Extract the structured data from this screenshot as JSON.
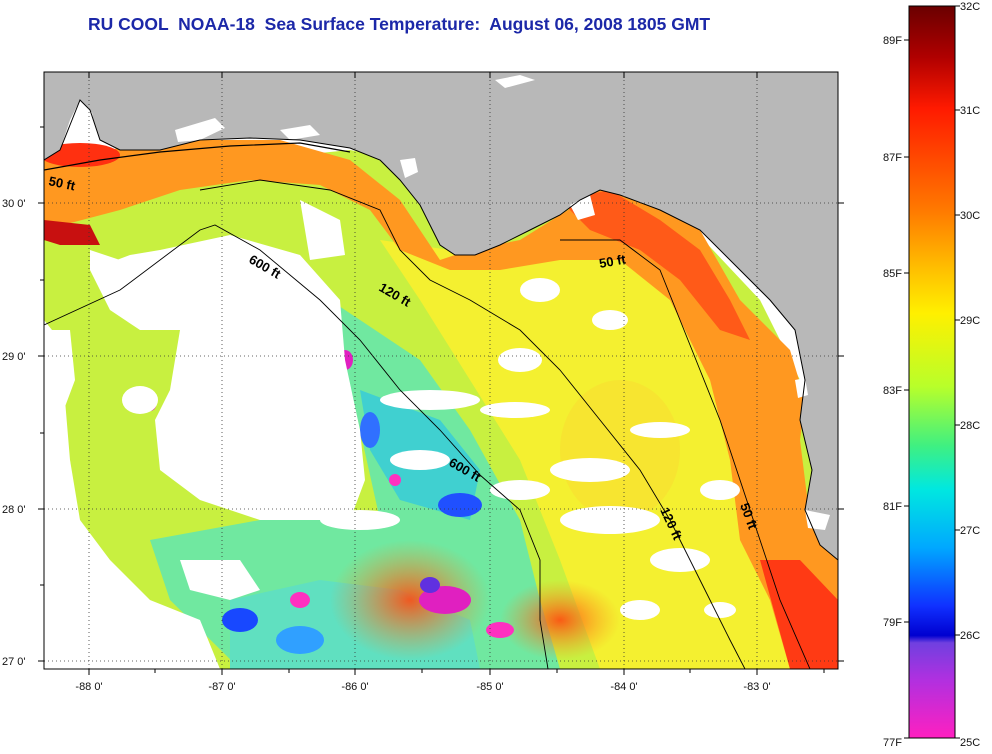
{
  "title": "RU COOL  NOAA-18  Sea Surface Temperature:  August 06, 2008 1805 GMT",
  "map": {
    "lon_labels": [
      "-88 0'",
      "-87 0'",
      "-86 0'",
      "-85 0'",
      "-84 0'",
      "-83 0'"
    ],
    "lat_labels": [
      "30 0'",
      "29 0'",
      "28 0'",
      "27 0'"
    ],
    "contours": [
      {
        "text": "50 ft"
      },
      {
        "text": "600 ft"
      },
      {
        "text": "120 ft"
      },
      {
        "text": "50 ft"
      },
      {
        "text": "600 ft"
      },
      {
        "text": "120 ft"
      },
      {
        "text": "50 ft"
      }
    ],
    "colors": {
      "land": "#b8b8b8",
      "no_data": "#ffffff"
    }
  },
  "colorbar": {
    "celsius": [
      "32C",
      "31C",
      "30C",
      "29C",
      "28C",
      "27C",
      "26C",
      "25C"
    ],
    "fahrenheit": [
      "89F",
      "87F",
      "85F",
      "83F",
      "81F",
      "79F",
      "77F"
    ]
  }
}
